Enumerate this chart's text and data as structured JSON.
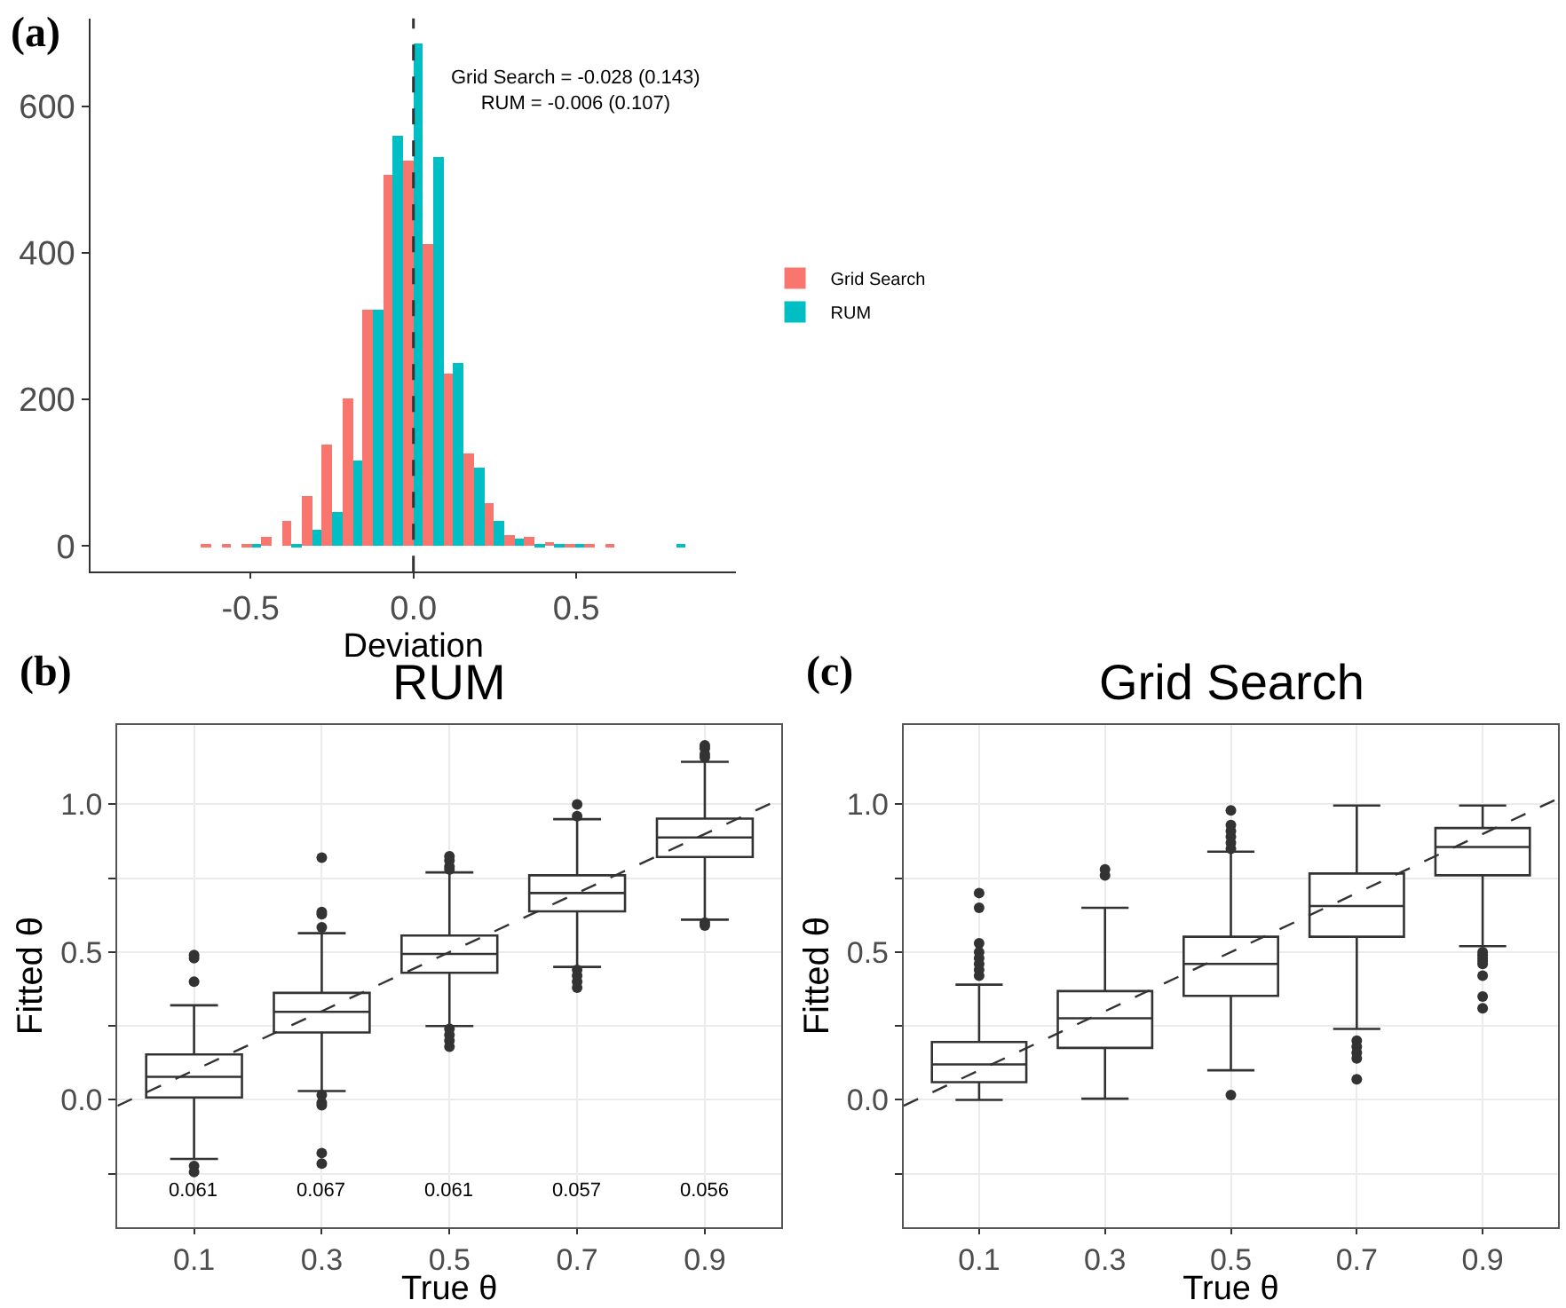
{
  "chart_data": [
    {
      "type": "bar",
      "xlabel": "Deviation",
      "annotations": [
        "(a)",
        "Grid Search = -0.028 (0.143)\nRUM = -0.006 (0.107)"
      ],
      "x": [
        -0.62,
        -0.558,
        -0.496,
        -0.434,
        -0.372,
        -0.31,
        -0.248,
        -0.186,
        -0.124,
        -0.062,
        0,
        0.062,
        0.124,
        0.186,
        0.248,
        0.31,
        0.372,
        0.434,
        0.496,
        0.558,
        0.62,
        0.682,
        0.744,
        0.806
      ],
      "series": [
        {
          "name": "Grid Search",
          "color": "#f8766d",
          "values": [
            1,
            1,
            4,
            12,
            34,
            68,
            139,
            202,
            324,
            507,
            527,
            412,
            236,
            127,
            58,
            15,
            14,
            5,
            2,
            1,
            1,
            0,
            0,
            0
          ]
        },
        {
          "name": "RUM",
          "color": "#00bfc4",
          "values": [
            0,
            0,
            3,
            0,
            1,
            22,
            47,
            116,
            322,
            559,
            686,
            530,
            250,
            107,
            35,
            10,
            4,
            2,
            2,
            0,
            0,
            0,
            0,
            1
          ]
        }
      ],
      "xlim": [
        -0.99,
        0.99
      ],
      "ylim": [
        -35,
        720
      ],
      "xticks": [
        -0.5,
        {
          "value": 0,
          "label": "0.0"
        },
        0.5
      ],
      "yticks": [
        0,
        200,
        400,
        600
      ],
      "ref_lines": [
        {
          "axis": "x",
          "value": 0,
          "line_style": "dashed",
          "color": "#333333"
        }
      ],
      "grid": false,
      "legend": "right"
    },
    {
      "type": "box",
      "title": "RUM",
      "xlabel": "True θ",
      "ylabel": "Fitted θ",
      "annotations": [
        "(b)",
        "0.061",
        "0.067",
        "0.061",
        "0.057",
        "0.056"
      ],
      "series": [
        {
          "type": "box",
          "color": "#333333",
          "x": [
            0.1,
            0.3,
            0.5,
            0.7,
            0.9
          ],
          "boxes": [
            {
              "low": -0.2,
              "q1": 0.008,
              "median": 0.078,
              "q3": 0.154,
              "high": 0.32,
              "outliers": [
                0.49,
                0.48,
                0.4,
                -0.224,
                -0.244
              ]
            },
            {
              "low": 0.03,
              "q1": 0.228,
              "median": 0.298,
              "q3": 0.362,
              "high": 0.564,
              "outliers": [
                0.82,
                0.636,
                0.628,
                0.584,
                0.016,
                -0.01,
                -0.018,
                -0.18,
                -0.216
              ]
            },
            {
              "low": 0.25,
              "q1": 0.43,
              "median": 0.494,
              "q3": 0.556,
              "high": 0.77,
              "outliers": [
                0.824,
                0.81,
                0.79,
                0.78,
                0.24,
                0.22,
                0.2,
                0.18
              ]
            },
            {
              "low": 0.45,
              "q1": 0.638,
              "median": 0.7,
              "q3": 0.76,
              "high": 0.95,
              "outliers": [
                1.0,
                0.96,
                0.44,
                0.42,
                0.4,
                0.38
              ]
            },
            {
              "low": 0.61,
              "q1": 0.822,
              "median": 0.888,
              "q3": 0.952,
              "high": 1.144,
              "outliers": [
                1.2,
                1.19,
                1.17,
                1.16,
                0.6,
                0.59
              ]
            }
          ]
        },
        {
          "type": "line",
          "color": "#333333",
          "line_style": "dashed",
          "x": [
            -0.02,
            1.02
          ],
          "values": [
            -0.02,
            1.02
          ]
        }
      ],
      "xlim": [
        -0.02,
        1.02
      ],
      "ylim": [
        -0.43,
        1.27
      ],
      "xticks": [
        0.1,
        0.3,
        0.5,
        0.7,
        0.9
      ],
      "yticks": [
        {
          "value": -0.25,
          "label": null
        },
        {
          "value": 0,
          "label": "0.0"
        },
        {
          "value": 0.25,
          "label": null
        },
        0.5,
        {
          "value": 0.75,
          "label": null
        },
        {
          "value": 1,
          "label": "1.0"
        }
      ],
      "grid": true
    },
    {
      "type": "box",
      "title": "Grid Search",
      "xlabel": "True θ",
      "ylabel": "Fitted θ",
      "annotations": [
        "(c)"
      ],
      "series": [
        {
          "type": "box",
          "color": "#333333",
          "x": [
            0.1,
            0.3,
            0.5,
            0.7,
            0.9
          ],
          "boxes": [
            {
              "low": 0.0,
              "q1": 0.06,
              "median": 0.12,
              "q3": 0.196,
              "high": 0.39,
              "outliers": [
                0.7,
                0.65,
                0.53,
                0.5,
                0.48,
                0.46,
                0.44,
                0.42
              ]
            },
            {
              "low": 0.004,
              "q1": 0.176,
              "median": 0.276,
              "q3": 0.368,
              "high": 0.65,
              "outliers": [
                0.78,
                0.76
              ]
            },
            {
              "low": 0.1,
              "q1": 0.352,
              "median": 0.46,
              "q3": 0.552,
              "high": 0.84,
              "outliers": [
                0.98,
                0.93,
                0.91,
                0.89,
                0.87,
                0.85,
                0.016
              ]
            },
            {
              "low": 0.24,
              "q1": 0.552,
              "median": 0.656,
              "q3": 0.766,
              "high": 0.996,
              "outliers": [
                0.2,
                0.18,
                0.16,
                0.14,
                0.07
              ]
            },
            {
              "low": 0.52,
              "q1": 0.76,
              "median": 0.856,
              "q3": 0.92,
              "high": 0.996,
              "outliers": [
                0.5,
                0.49,
                0.48,
                0.47,
                0.46,
                0.42,
                0.35,
                0.31
              ]
            }
          ]
        },
        {
          "type": "line",
          "color": "#333333",
          "line_style": "dashed",
          "x": [
            -0.02,
            1.02
          ],
          "values": [
            -0.02,
            1.02
          ]
        }
      ],
      "xlim": [
        -0.02,
        1.02
      ],
      "ylim": [
        -0.43,
        1.27
      ],
      "xticks": [
        0.1,
        0.3,
        0.5,
        0.7,
        0.9
      ],
      "yticks": [
        {
          "value": -0.25,
          "label": null
        },
        {
          "value": 0,
          "label": "0.0"
        },
        {
          "value": 0.25,
          "label": null
        },
        0.5,
        {
          "value": 0.75,
          "label": null
        },
        {
          "value": 1,
          "label": "1.0"
        }
      ],
      "grid": true
    }
  ]
}
